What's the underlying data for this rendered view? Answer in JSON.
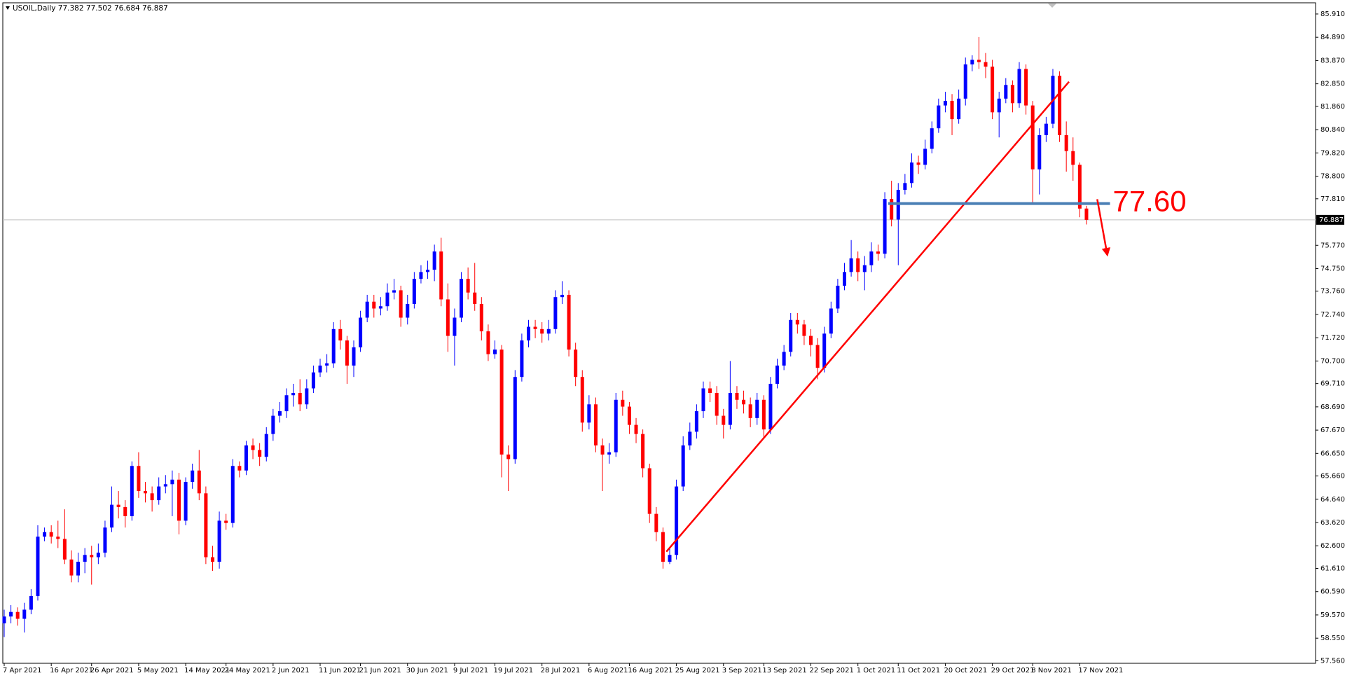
{
  "chart_data": {
    "type": "candlestick",
    "header": "USOIL,Daily  77.382 77.502 76.684 76.887",
    "up_color": "#0000ff",
    "down_color": "#ff0000",
    "categories": [
      "7 Apr 2021",
      null,
      null,
      null,
      null,
      null,
      null,
      "16 Apr 2021",
      null,
      null,
      null,
      null,
      null,
      "26 Apr 2021",
      null,
      null,
      null,
      null,
      null,
      null,
      "5 May 2021",
      null,
      null,
      null,
      null,
      null,
      null,
      "14 May 2021",
      null,
      null,
      null,
      null,
      null,
      "24 May 2021",
      null,
      null,
      null,
      null,
      null,
      null,
      "2 Jun 2021",
      null,
      null,
      null,
      null,
      null,
      null,
      "11 Jun 2021",
      null,
      null,
      null,
      null,
      null,
      "21 Jun 2021",
      null,
      null,
      null,
      null,
      null,
      null,
      "30 Jun 2021",
      null,
      null,
      null,
      null,
      null,
      null,
      "9 Jul 2021",
      null,
      null,
      null,
      null,
      null,
      "19 Jul 2021",
      null,
      null,
      null,
      null,
      null,
      null,
      "28 Jul 2021",
      null,
      null,
      null,
      null,
      null,
      null,
      "6 Aug 2021",
      null,
      null,
      null,
      null,
      null,
      "16 Aug 2021",
      null,
      null,
      null,
      null,
      null,
      null,
      "25 Aug 2021",
      null,
      null,
      null,
      null,
      null,
      null,
      "3 Sep 2021",
      null,
      null,
      null,
      null,
      null,
      "13 Sep 2021",
      null,
      null,
      null,
      null,
      null,
      null,
      "22 Sep 2021",
      null,
      null,
      null,
      null,
      null,
      null,
      "1 Oct 2021",
      null,
      null,
      null,
      null,
      null,
      "11 Oct 2021",
      null,
      null,
      null,
      null,
      null,
      null,
      "20 Oct 2021",
      null,
      null,
      null,
      null,
      null,
      null,
      "29 Oct 2021",
      null,
      null,
      null,
      null,
      null,
      "8 Nov 2021",
      null,
      null,
      null,
      null,
      null,
      null,
      "17 Nov 2021",
      null
    ],
    "open": [
      59.2,
      59.5,
      59.7,
      59.4,
      59.8,
      60.4,
      63.0,
      63.2,
      63.0,
      62.9,
      62.0,
      61.3,
      61.9,
      62.2,
      62.1,
      62.3,
      63.4,
      64.4,
      64.3,
      63.9,
      66.1,
      65.0,
      64.9,
      64.6,
      65.2,
      65.3,
      65.5,
      63.7,
      65.4,
      65.9,
      64.9,
      62.1,
      61.9,
      63.7,
      63.6,
      66.1,
      65.9,
      67.0,
      66.8,
      66.5,
      67.5,
      68.3,
      68.5,
      69.2,
      69.3,
      68.8,
      69.5,
      70.2,
      70.5,
      70.6,
      72.1,
      71.6,
      70.5,
      71.3,
      72.6,
      73.3,
      73.0,
      73.1,
      73.7,
      73.8,
      72.6,
      73.2,
      74.3,
      74.6,
      74.7,
      75.5,
      73.4,
      71.8,
      72.6,
      74.3,
      73.7,
      73.2,
      72.0,
      71.0,
      71.2,
      66.6,
      66.4,
      70.0,
      71.6,
      72.2,
      72.1,
      71.9,
      72.1,
      73.5,
      73.6,
      71.2,
      70.0,
      68.0,
      68.8,
      67.0,
      66.6,
      66.7,
      69.0,
      68.7,
      67.9,
      67.5,
      66.0,
      64.0,
      63.2,
      61.9,
      62.2,
      65.2,
      67.0,
      67.6,
      68.5,
      69.5,
      69.3,
      68.3,
      67.9,
      69.3,
      69.0,
      68.8,
      68.2,
      69.0,
      67.7,
      69.7,
      70.5,
      71.1,
      72.5,
      72.3,
      71.8,
      71.4,
      70.4,
      71.9,
      73.0,
      74.0,
      74.6,
      75.2,
      74.6,
      74.9,
      75.5,
      75.4,
      77.8,
      76.9,
      78.2,
      78.5,
      79.4,
      79.3,
      80.0,
      80.9,
      81.9,
      82.1,
      81.3,
      82.2,
      83.7,
      83.9,
      83.8,
      83.6,
      81.6,
      82.2,
      82.8,
      82.0,
      83.5,
      81.9,
      79.1,
      80.6,
      81.1,
      83.2,
      80.6,
      79.9,
      79.3,
      77.382
    ],
    "high": [
      59.8,
      60.0,
      59.9,
      60.1,
      60.7,
      63.5,
      63.4,
      63.5,
      63.7,
      64.2,
      62.4,
      62.3,
      62.5,
      62.6,
      62.7,
      63.7,
      65.2,
      65.0,
      64.6,
      66.3,
      66.7,
      65.4,
      65.2,
      65.6,
      65.7,
      65.9,
      65.8,
      65.6,
      66.2,
      66.8,
      65.2,
      62.6,
      64.1,
      64.0,
      66.4,
      66.3,
      67.2,
      67.3,
      67.1,
      67.8,
      68.6,
      68.9,
      69.5,
      69.7,
      69.9,
      69.9,
      70.5,
      70.8,
      71.0,
      72.4,
      72.5,
      71.8,
      71.6,
      72.9,
      73.6,
      73.6,
      73.5,
      74.1,
      74.3,
      74.0,
      73.6,
      74.6,
      74.9,
      75.1,
      75.8,
      76.1,
      74.1,
      73.0,
      74.6,
      74.8,
      75.0,
      73.5,
      72.3,
      71.6,
      71.4,
      67.0,
      70.3,
      71.9,
      72.5,
      72.5,
      72.4,
      72.5,
      73.8,
      74.2,
      73.8,
      71.5,
      70.3,
      69.2,
      69.1,
      67.3,
      67.1,
      69.3,
      69.4,
      68.9,
      68.2,
      67.7,
      66.2,
      64.3,
      63.4,
      62.5,
      65.5,
      67.4,
      68.0,
      68.8,
      69.8,
      69.8,
      69.6,
      68.6,
      70.7,
      69.6,
      69.4,
      69.1,
      69.3,
      69.2,
      70.0,
      70.8,
      71.4,
      72.8,
      72.8,
      72.5,
      72.1,
      71.7,
      72.2,
      73.3,
      74.3,
      75.0,
      76.0,
      75.5,
      75.3,
      75.9,
      75.8,
      78.1,
      78.6,
      78.5,
      78.9,
      79.8,
      79.7,
      80.4,
      81.2,
      82.2,
      82.5,
      82.4,
      82.6,
      84.0,
      84.1,
      84.9,
      84.2,
      83.9,
      82.5,
      83.1,
      83.0,
      83.8,
      83.7,
      82.1,
      80.9,
      81.4,
      83.5,
      83.4,
      81.2,
      80.5,
      79.4,
      77.502
    ],
    "low": [
      58.6,
      59.2,
      59.1,
      58.8,
      59.6,
      60.2,
      62.8,
      62.7,
      62.5,
      61.8,
      61.0,
      61.0,
      61.4,
      60.9,
      61.8,
      62.1,
      63.2,
      63.8,
      63.4,
      63.7,
      64.7,
      64.5,
      64.1,
      64.4,
      64.9,
      63.9,
      63.1,
      63.5,
      65.1,
      64.6,
      61.8,
      61.5,
      61.6,
      63.3,
      63.4,
      65.6,
      65.7,
      66.4,
      66.1,
      66.3,
      67.2,
      68.0,
      68.2,
      68.7,
      68.5,
      68.6,
      69.3,
      70.0,
      70.2,
      70.4,
      71.2,
      69.7,
      70.0,
      71.1,
      72.4,
      72.6,
      72.7,
      72.9,
      73.4,
      72.2,
      72.3,
      73.0,
      74.1,
      74.3,
      74.2,
      73.1,
      71.1,
      70.5,
      72.4,
      73.4,
      72.9,
      71.6,
      70.7,
      70.8,
      65.6,
      65.0,
      66.2,
      69.8,
      71.3,
      71.7,
      71.5,
      71.6,
      71.9,
      73.2,
      70.9,
      69.6,
      67.6,
      67.7,
      66.7,
      65.0,
      66.2,
      66.5,
      68.3,
      67.5,
      67.1,
      65.6,
      63.6,
      62.8,
      61.6,
      61.8,
      62.0,
      65.0,
      66.8,
      67.3,
      68.2,
      68.9,
      67.9,
      67.3,
      67.7,
      68.6,
      68.4,
      67.8,
      67.9,
      67.3,
      67.5,
      69.5,
      70.3,
      70.9,
      71.9,
      71.4,
      70.9,
      69.9,
      70.2,
      71.7,
      72.8,
      73.8,
      74.4,
      74.2,
      73.8,
      74.6,
      75.1,
      75.2,
      76.6,
      74.9,
      78.0,
      78.3,
      78.9,
      79.1,
      79.8,
      80.7,
      81.6,
      80.6,
      81.1,
      81.9,
      83.4,
      83.5,
      83.1,
      81.3,
      80.5,
      82.0,
      81.6,
      81.8,
      81.5,
      77.6,
      78.0,
      80.3,
      80.9,
      80.3,
      79.0,
      78.6,
      77.0,
      76.684
    ],
    "close": [
      59.5,
      59.7,
      59.4,
      59.8,
      60.4,
      63.0,
      63.2,
      63.0,
      62.9,
      62.0,
      61.3,
      61.9,
      62.2,
      62.1,
      62.3,
      63.4,
      64.4,
      64.3,
      63.9,
      66.1,
      65.0,
      64.9,
      64.6,
      65.2,
      65.3,
      65.5,
      63.7,
      65.4,
      65.9,
      64.9,
      62.1,
      61.9,
      63.7,
      63.6,
      66.1,
      65.9,
      67.0,
      66.8,
      66.5,
      67.5,
      68.3,
      68.5,
      69.2,
      69.3,
      68.8,
      69.5,
      70.2,
      70.5,
      70.6,
      72.1,
      71.6,
      70.5,
      71.3,
      72.6,
      73.3,
      73.0,
      73.1,
      73.7,
      73.8,
      72.6,
      73.2,
      74.3,
      74.6,
      74.7,
      75.5,
      73.4,
      71.8,
      72.6,
      74.3,
      73.7,
      73.2,
      72.0,
      71.0,
      71.2,
      66.6,
      66.4,
      70.0,
      71.6,
      72.2,
      72.1,
      71.9,
      72.1,
      73.5,
      73.6,
      71.2,
      70.0,
      68.0,
      68.8,
      67.0,
      66.6,
      66.7,
      69.0,
      68.7,
      67.9,
      67.5,
      66.0,
      64.0,
      63.2,
      61.9,
      62.2,
      65.2,
      67.0,
      67.6,
      68.5,
      69.5,
      69.3,
      68.3,
      67.9,
      69.3,
      69.0,
      68.8,
      68.2,
      69.0,
      67.7,
      69.7,
      70.5,
      71.1,
      72.5,
      72.3,
      71.8,
      71.4,
      70.4,
      71.9,
      73.0,
      74.0,
      74.6,
      75.2,
      74.6,
      74.9,
      75.5,
      75.4,
      77.8,
      76.9,
      78.2,
      78.5,
      79.4,
      79.3,
      80.0,
      80.9,
      81.9,
      82.1,
      81.3,
      82.2,
      83.7,
      83.9,
      83.8,
      83.6,
      81.6,
      82.2,
      82.8,
      82.0,
      83.5,
      81.9,
      79.1,
      80.6,
      81.1,
      83.2,
      80.6,
      79.9,
      79.3,
      77.38,
      76.887
    ],
    "ylim": [
      57.45,
      86.4
    ],
    "yticks": [
      {
        "value": 85.91,
        "label": "85.910"
      },
      {
        "value": 84.89,
        "label": "84.890"
      },
      {
        "value": 83.87,
        "label": "83.870"
      },
      {
        "value": 82.85,
        "label": "82.850"
      },
      {
        "value": 81.86,
        "label": "81.860"
      },
      {
        "value": 80.84,
        "label": "80.840"
      },
      {
        "value": 79.82,
        "label": "79.820"
      },
      {
        "value": 78.8,
        "label": "78.800"
      },
      {
        "value": 77.81,
        "label": "77.810"
      },
      {
        "value": 75.77,
        "label": "75.770"
      },
      {
        "value": 74.75,
        "label": "74.750"
      },
      {
        "value": 73.76,
        "label": "73.760"
      },
      {
        "value": 72.74,
        "label": "72.740"
      },
      {
        "value": 71.72,
        "label": "71.720"
      },
      {
        "value": 70.7,
        "label": "70.700"
      },
      {
        "value": 69.71,
        "label": "69.710"
      },
      {
        "value": 68.69,
        "label": "68.690"
      },
      {
        "value": 67.67,
        "label": "67.670"
      },
      {
        "value": 66.65,
        "label": "66.650"
      },
      {
        "value": 65.66,
        "label": "65.660"
      },
      {
        "value": 64.64,
        "label": "64.640"
      },
      {
        "value": 63.62,
        "label": "63.620"
      },
      {
        "value": 62.6,
        "label": "62.600"
      },
      {
        "value": 61.61,
        "label": "61.610"
      },
      {
        "value": 60.59,
        "label": "60.590"
      },
      {
        "value": 59.57,
        "label": "59.570"
      },
      {
        "value": 58.55,
        "label": "58.550"
      },
      {
        "value": 57.56,
        "label": "57.560"
      }
    ],
    "current_price": {
      "value": 76.887,
      "label": "76.887"
    },
    "level": {
      "value": 77.6,
      "label": "77.60",
      "from": 131.5,
      "to": 164.5,
      "color": "#4a7fb5"
    },
    "trendline": {
      "from": [
        98.5,
        62.34
      ],
      "to": [
        158.4,
        82.94
      ],
      "color": "#ff0000"
    },
    "arrow": {
      "from": [
        162.6,
        77.79
      ],
      "to": [
        164.1,
        75.35
      ],
      "color": "#ff0000"
    }
  }
}
